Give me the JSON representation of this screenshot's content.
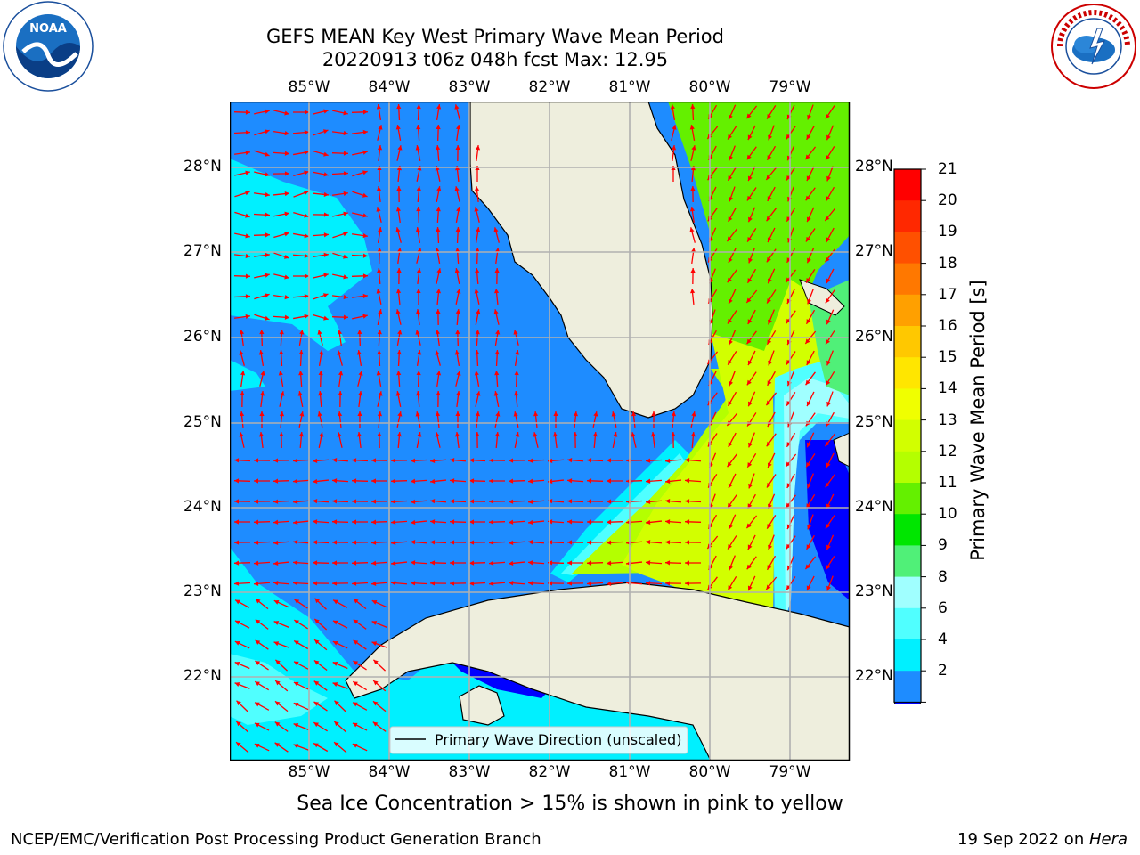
{
  "title": {
    "line1": "GEFS MEAN Key West Primary Wave Mean Period",
    "line2": "20220913 t06z 048h fcst   Max: 12.95"
  },
  "logos": {
    "noaa": "NOAA",
    "noaa_ring": "NATIONAL OCEANIC AND ATMOSPHERIC ADMINISTRATION · U.S. DEPARTMENT OF COMMERCE",
    "nws_ring": "NATIONAL WEATHER SERVICE"
  },
  "map": {
    "lon_labels": [
      "85°W",
      "84°W",
      "83°W",
      "82°W",
      "81°W",
      "80°W",
      "79°W"
    ],
    "lat_labels": [
      "28°N",
      "27°N",
      "26°N",
      "25°N",
      "24°N",
      "23°N",
      "22°N"
    ],
    "arrow_color": "#ff0000",
    "land_color": "#eeeedd",
    "legend_label": "Primary Wave Direction (unscaled)"
  },
  "colorbar": {
    "title": "Primary Wave Mean Period [s]",
    "tick_labels": [
      "21",
      "20",
      "19",
      "18",
      "17",
      "16",
      "15",
      "14",
      "13",
      "12",
      "11",
      "10",
      "9",
      "8",
      "6",
      "4",
      "2"
    ],
    "colors_top_to_bottom": [
      "#ff0000",
      "#ff2800",
      "#ff5000",
      "#ff7800",
      "#ffa000",
      "#ffc800",
      "#ffe600",
      "#f0ff00",
      "#d2ff00",
      "#b4ff00",
      "#64f000",
      "#00e600",
      "#50f078",
      "#a0ffff",
      "#50ffff",
      "#00f0ff",
      "#1e8cff"
    ],
    "extend_color": "#0000ff"
  },
  "subtitle": "Sea Ice Concentration > 15% is shown in pink to yellow",
  "footer": {
    "left": "NCEP/EMC/Verification Post Processing Product Generation Branch",
    "right_date": "19 Sep 2022 on ",
    "right_host": "Hera"
  }
}
